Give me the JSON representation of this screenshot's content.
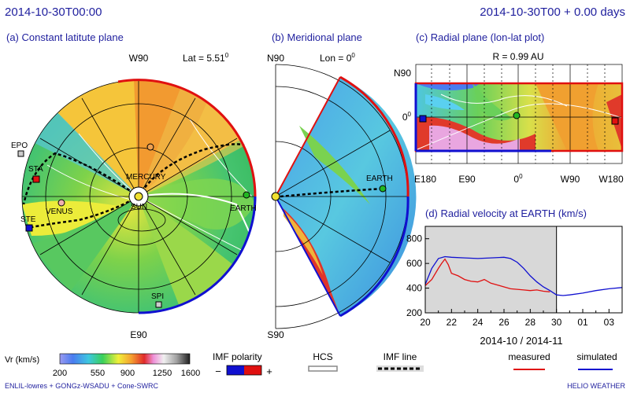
{
  "header": {
    "datetime": "2014-10-30T00:00",
    "forecast": "2014-10-30T00 + 0.00 days"
  },
  "panels": {
    "a": {
      "title": "(a) Constant latitute plane",
      "top_label": "W90",
      "bottom_label": "E90",
      "lat_prefix": "Lat = 5.51",
      "lat_sup": "0"
    },
    "b": {
      "title": "(b) Meridional plane",
      "top_label": "N90",
      "bottom_label": "S90",
      "lon_prefix": "Lon = 0",
      "lon_sup": "0"
    },
    "c": {
      "title": "(c) Radial plane (lon-lat plot)",
      "radius": "R = 0.99 AU",
      "y_top": "N90",
      "y_mid": "0",
      "y_mid_sup": "0",
      "x_ticks": [
        "E180",
        "E90",
        "0",
        "W90",
        "W180"
      ],
      "x_zero_sup": "0"
    },
    "d": {
      "title": "(d) Radial velocity at EARTH (km/s)"
    }
  },
  "bodies": [
    "EARTH",
    "MERCURY",
    "VENUS",
    "SUN",
    "STA",
    "STE",
    "EPO",
    "SPI"
  ],
  "bodies_b": [
    "EARTH"
  ],
  "legend": {
    "vr_label": "Vr  (km/s)",
    "vr_ticks": [
      "200",
      "550",
      "900",
      "1250",
      "1600"
    ],
    "imf_polarity": "IMF polarity",
    "imf_minus": "−",
    "imf_plus": "+",
    "hcs": "HCS",
    "imf_line": "IMF line",
    "measured": "measured",
    "simulated": "simulated"
  },
  "footer": {
    "left": "ENLIL-lowres + GONGz-WSADU + Cone-SWRC",
    "right": "HELIO  WEATHER"
  },
  "colors": {
    "title_blue": "#1f1f9e",
    "measured": "#e01010",
    "simulated": "#1010d0",
    "polarity_neg": "#1010d0",
    "polarity_pos": "#e01010",
    "forecast_shade": "#d8d8d8"
  },
  "chart_data": {
    "type": "line",
    "title": "(d) Radial velocity at EARTH (km/s)",
    "xlabel": "2014-10 / 2014-11",
    "ylabel": "",
    "x_tick_labels": [
      "20",
      "22",
      "24",
      "26",
      "28",
      "30",
      "01",
      "03"
    ],
    "y_ticks": [
      200,
      400,
      600,
      800
    ],
    "xlim": [
      "2014-10-20",
      "2014-11-04"
    ],
    "ylim": [
      200,
      900
    ],
    "forecast_start": "2014-10-30",
    "grid": false,
    "legend_position": "bottom",
    "series": [
      {
        "name": "measured",
        "x": [
          "2014-10-20",
          "2014-10-20T12",
          "2014-10-21",
          "2014-10-21T06",
          "2014-10-21T12",
          "2014-10-21T18",
          "2014-10-22",
          "2014-10-22T12",
          "2014-10-23",
          "2014-10-23T12",
          "2014-10-24",
          "2014-10-24T12",
          "2014-10-25",
          "2014-10-25T12",
          "2014-10-26",
          "2014-10-26T12",
          "2014-10-27",
          "2014-10-27T12",
          "2014-10-28",
          "2014-10-28T12",
          "2014-10-29",
          "2014-10-29T12"
        ],
        "values": [
          420,
          470,
          560,
          600,
          635,
          590,
          520,
          500,
          470,
          455,
          450,
          470,
          440,
          425,
          410,
          395,
          390,
          385,
          380,
          385,
          375,
          370
        ]
      },
      {
        "name": "simulated",
        "x": [
          "2014-10-20",
          "2014-10-20T12",
          "2014-10-21",
          "2014-10-21T12",
          "2014-10-22",
          "2014-10-23",
          "2014-10-24",
          "2014-10-25",
          "2014-10-26",
          "2014-10-26T12",
          "2014-10-27",
          "2014-10-27T12",
          "2014-10-28",
          "2014-10-28T12",
          "2014-10-29",
          "2014-10-29T12",
          "2014-10-30",
          "2014-10-30T12",
          "2014-10-31",
          "2014-11-01",
          "2014-11-02",
          "2014-11-03",
          "2014-11-04"
        ],
        "values": [
          430,
          560,
          640,
          655,
          650,
          645,
          640,
          645,
          650,
          640,
          610,
          560,
          500,
          450,
          410,
          380,
          345,
          340,
          345,
          360,
          380,
          395,
          405
        ]
      }
    ]
  }
}
